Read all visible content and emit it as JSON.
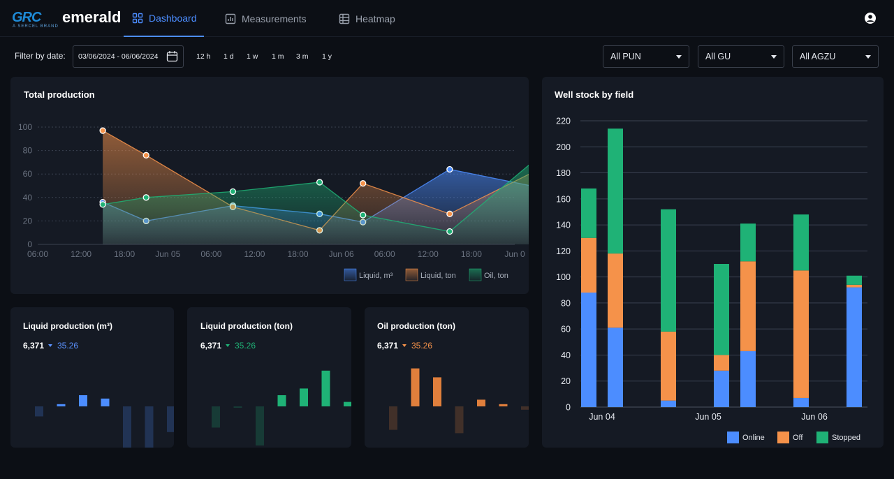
{
  "brand": {
    "logo_mark": "GRC",
    "logo_word": "emerald",
    "logo_sub": "A SERCEL BRAND"
  },
  "nav": {
    "tabs": [
      {
        "label": "Dashboard",
        "icon": "dashboard-icon",
        "active": true
      },
      {
        "label": "Measurements",
        "icon": "bar-chart-icon",
        "active": false
      },
      {
        "label": "Heatmap",
        "icon": "table-grid-icon",
        "active": false
      }
    ],
    "user_icon": "user-account-icon"
  },
  "filters": {
    "label": "Filter by date:",
    "date_range": "03/06/2024 - 06/06/2024",
    "quick_ranges": [
      "12 h",
      "1 d",
      "1 w",
      "1 m",
      "3 m",
      "1 y"
    ],
    "selects": [
      "All PUN",
      "All GU",
      "All AGZU"
    ]
  },
  "colors": {
    "blue": "#4c8dff",
    "orange": "#f5924a",
    "green": "#1fb276"
  },
  "chart_data": [
    {
      "type": "area",
      "title": "Total production",
      "x_ticks": [
        "06:00",
        "12:00",
        "18:00",
        "Jun 05",
        "06:00",
        "12:00",
        "18:00",
        "Jun 06",
        "06:00",
        "12:00",
        "18:00",
        "Jun 0"
      ],
      "ylim": [
        0,
        100
      ],
      "y_ticks": [
        0,
        20,
        40,
        60,
        80,
        100
      ],
      "grid": true,
      "legend": "bottom-right",
      "x_hours": [
        9,
        15,
        27,
        39,
        45,
        57,
        69
      ],
      "series": [
        {
          "name": "Liquid, m³",
          "color": "#4c8dff",
          "values": [
            36,
            20,
            33,
            26,
            19,
            64,
            49
          ]
        },
        {
          "name": "Liquid, ton",
          "color": "#f5924a",
          "values": [
            97,
            76,
            32,
            12,
            52,
            26,
            63
          ]
        },
        {
          "name": "Oil, ton",
          "color": "#1fb276",
          "x_hours": [
            9,
            15,
            27,
            39,
            45,
            57,
            69
          ],
          "values": [
            34,
            40,
            45,
            53,
            25,
            11,
            73
          ]
        }
      ]
    },
    {
      "type": "bar",
      "stacked": true,
      "title": "Well stock by field",
      "x_ticks": [
        "Jun 04",
        "Jun 05",
        "Jun 06"
      ],
      "ylim": [
        0,
        220
      ],
      "y_ticks": [
        0,
        20,
        40,
        60,
        80,
        100,
        120,
        140,
        160,
        180,
        200,
        220
      ],
      "legend": "bottom-right",
      "bars": [
        {
          "online": 88,
          "off": 42,
          "stopped": 38
        },
        {
          "online": 61,
          "off": 57,
          "stopped": 96
        },
        {
          "online": 5,
          "off": 53,
          "stopped": 94
        },
        {
          "online": 28,
          "off": 12,
          "stopped": 70
        },
        {
          "online": 43,
          "off": 69,
          "stopped": 29
        },
        {
          "online": 7,
          "off": 98,
          "stopped": 43
        },
        {
          "online": 92,
          "off": 2,
          "stopped": 7
        }
      ],
      "series": [
        {
          "name": "Online",
          "color": "#4c8dff"
        },
        {
          "name": "Off",
          "color": "#f5924a"
        },
        {
          "name": "Stopped",
          "color": "#1fb276"
        }
      ]
    },
    {
      "type": "bar",
      "title": "Liquid production (m³)",
      "value": "6,371",
      "delta": "35.26",
      "color": "#4c8dff",
      "values": [
        -9,
        2,
        10,
        7,
        -43,
        -39,
        -23
      ]
    },
    {
      "type": "bar",
      "title": "Liquid production (ton)",
      "value": "6,371",
      "delta": "35.26",
      "color": "#1fb276",
      "values": [
        -19,
        -1,
        -35,
        10,
        16,
        32,
        4
      ]
    },
    {
      "type": "bar",
      "title": "Oil production (ton)",
      "value": "6,371",
      "delta": "35.26",
      "color": "#e07f3c",
      "values": [
        -21,
        34,
        26,
        -24,
        6,
        2,
        -3
      ]
    }
  ]
}
